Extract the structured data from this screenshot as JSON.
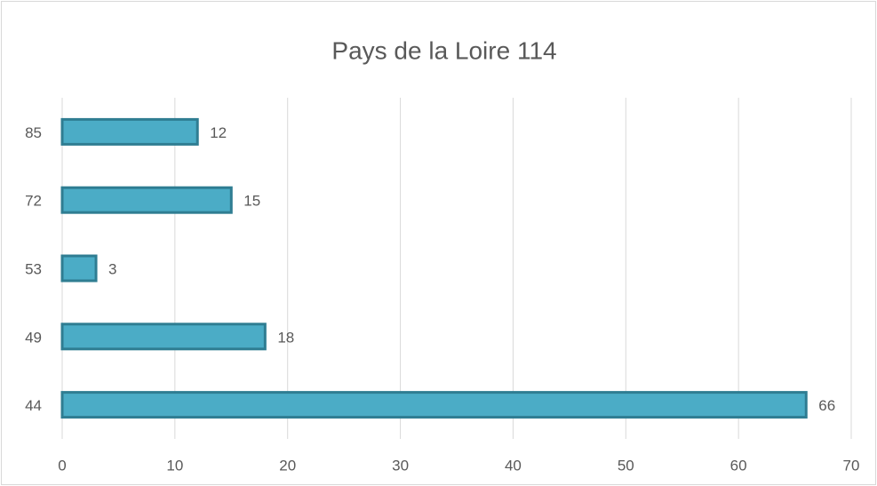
{
  "chart_data": {
    "type": "bar",
    "orientation": "horizontal",
    "title": "Pays de la Loire 114",
    "categories": [
      "44",
      "49",
      "53",
      "72",
      "85"
    ],
    "values": [
      66,
      18,
      3,
      15,
      12
    ],
    "color": "#4bacc6",
    "edge_color": "#2f7d92",
    "xlim": [
      0,
      70
    ],
    "xticks": [
      0,
      10,
      20,
      30,
      40,
      50,
      60,
      70
    ],
    "grid": true
  }
}
